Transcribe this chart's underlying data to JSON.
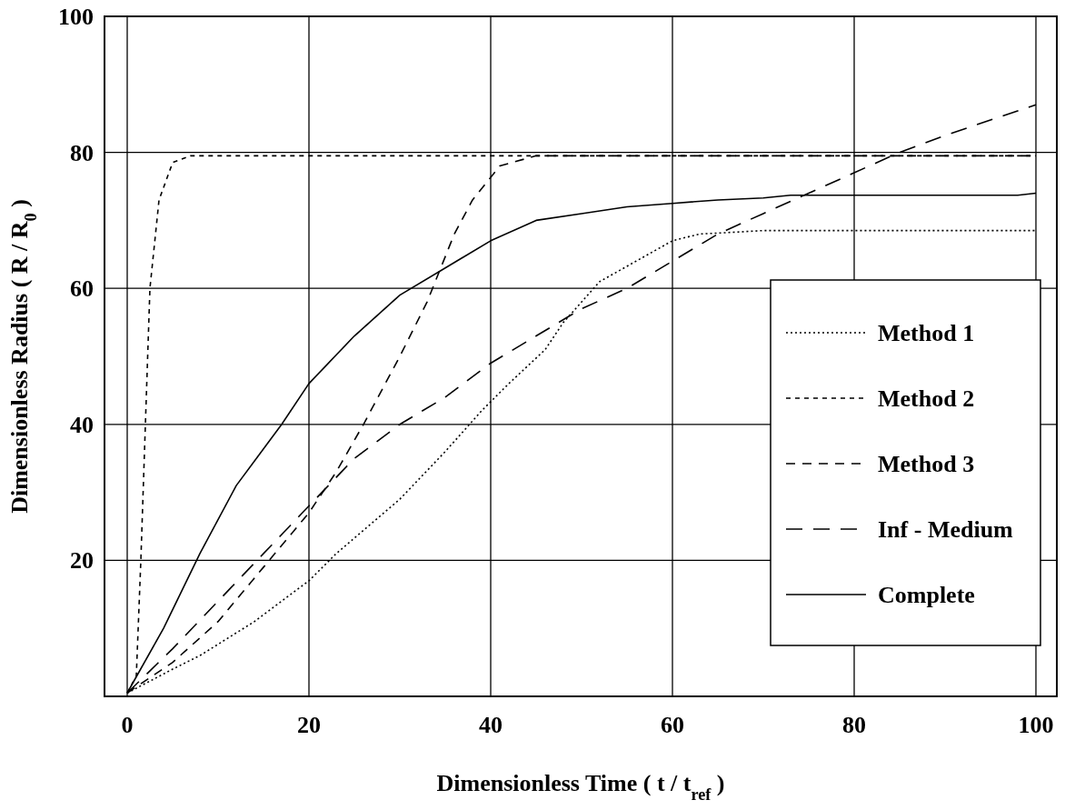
{
  "chart_data": {
    "type": "line",
    "xlabel": "Dimensionless Time ( t / t$_{ref}$ )",
    "ylabel": "Dimensionless Radius ( R / R$_{0}$ )",
    "xlim": [
      -2.5,
      102.3
    ],
    "ylim": [
      0,
      100
    ],
    "xticks": [
      0,
      20,
      40,
      60,
      80,
      100
    ],
    "yticks": [
      20,
      40,
      60,
      80,
      100
    ],
    "grid": true,
    "legend": "right",
    "marker": "none",
    "series": [
      {
        "name": "Method 1",
        "color": "#000000",
        "line_style": "dotted",
        "x": [
          0,
          5,
          8,
          14,
          20,
          23,
          30,
          35,
          39,
          42,
          46,
          48,
          52,
          56,
          60,
          63,
          66,
          70,
          100
        ],
        "values": [
          0.5,
          4,
          6,
          11,
          17,
          21,
          29,
          36,
          42,
          46,
          51,
          55,
          61,
          64,
          67,
          68,
          68.2,
          68.5,
          68.5
        ]
      },
      {
        "name": "Method 2",
        "color": "#000000",
        "line_style": "dashed",
        "x": [
          0,
          1,
          1.5,
          2,
          2.5,
          3.5,
          5,
          7,
          100
        ],
        "values": [
          0.5,
          3,
          20,
          40,
          60,
          73,
          78.5,
          79.5,
          79.5
        ]
      },
      {
        "name": "Method 3",
        "color": "#000000",
        "line_style": "dashed",
        "x": [
          0,
          5,
          10,
          15,
          20,
          23,
          26,
          30,
          33,
          36,
          38,
          41,
          45,
          100
        ],
        "values": [
          0.5,
          5,
          11,
          19,
          27,
          33,
          40,
          50,
          58,
          68,
          73,
          78,
          79.5,
          79.5
        ]
      },
      {
        "name": "Inf - Medium",
        "color": "#000000",
        "line_style": "dashed",
        "x": [
          0,
          5,
          10,
          15,
          20,
          25,
          30,
          35,
          40,
          45,
          50,
          55,
          60,
          65,
          70,
          75,
          80,
          85,
          90,
          100
        ],
        "values": [
          0.5,
          7,
          14,
          21,
          28,
          35,
          40,
          44,
          49,
          53,
          57,
          60,
          64,
          68,
          71,
          74,
          77,
          80,
          82.5,
          87
        ]
      },
      {
        "name": "Complete",
        "color": "#000000",
        "line_style": "solid",
        "x": [
          0,
          4,
          8,
          12,
          17,
          20,
          25,
          30,
          35,
          40,
          45,
          50,
          55,
          60,
          65,
          70,
          73,
          98,
          100
        ],
        "values": [
          0.5,
          10,
          21,
          31,
          40,
          46,
          53,
          59,
          63,
          67,
          70,
          71,
          72,
          72.5,
          73,
          73.3,
          73.7,
          73.7,
          74
        ]
      }
    ]
  }
}
